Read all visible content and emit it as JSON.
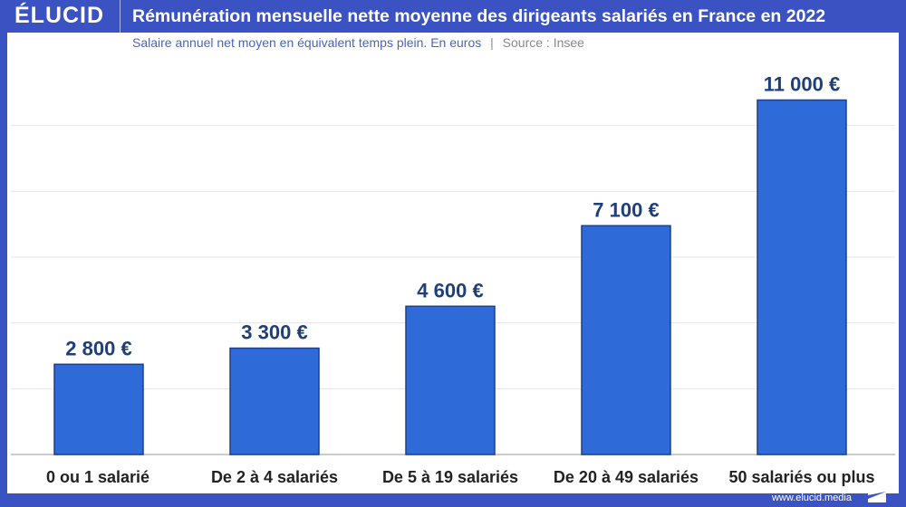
{
  "header": {
    "logo": "ÉLUCID",
    "title": "Rémunération mensuelle nette moyenne des dirigeants salariés en France en 2022"
  },
  "subtitle": {
    "text": "Salaire annuel net moyen en équivalent temps plein. En euros",
    "separator": "|",
    "source": "Source : Insee"
  },
  "footer": {
    "url": "www.elucid.media"
  },
  "colors": {
    "frame": "#3b53c2",
    "bar": "#2f6bd8",
    "bar_border": "#1d3f8c",
    "label": "#1f3f7a",
    "category": "#222222"
  },
  "chart_data": {
    "type": "bar",
    "title": "Rémunération mensuelle nette moyenne des dirigeants salariés en France en 2022",
    "subtitle": "Salaire annuel net moyen en équivalent temps plein. En euros",
    "categories": [
      "0 ou 1 salarié",
      "De 2 à 4 salariés",
      "De 5 à 19 salariés",
      "De 20 à 49 salariés",
      "50 salariés ou plus"
    ],
    "values": [
      2800,
      3300,
      4600,
      7100,
      11000
    ],
    "data_labels": [
      "2 800 €",
      "3 300 €",
      "4 600 €",
      "7 100 €",
      "11 000 €"
    ],
    "xlabel": "",
    "ylabel": "",
    "ylim": [
      0,
      12250
    ],
    "grid": true
  }
}
